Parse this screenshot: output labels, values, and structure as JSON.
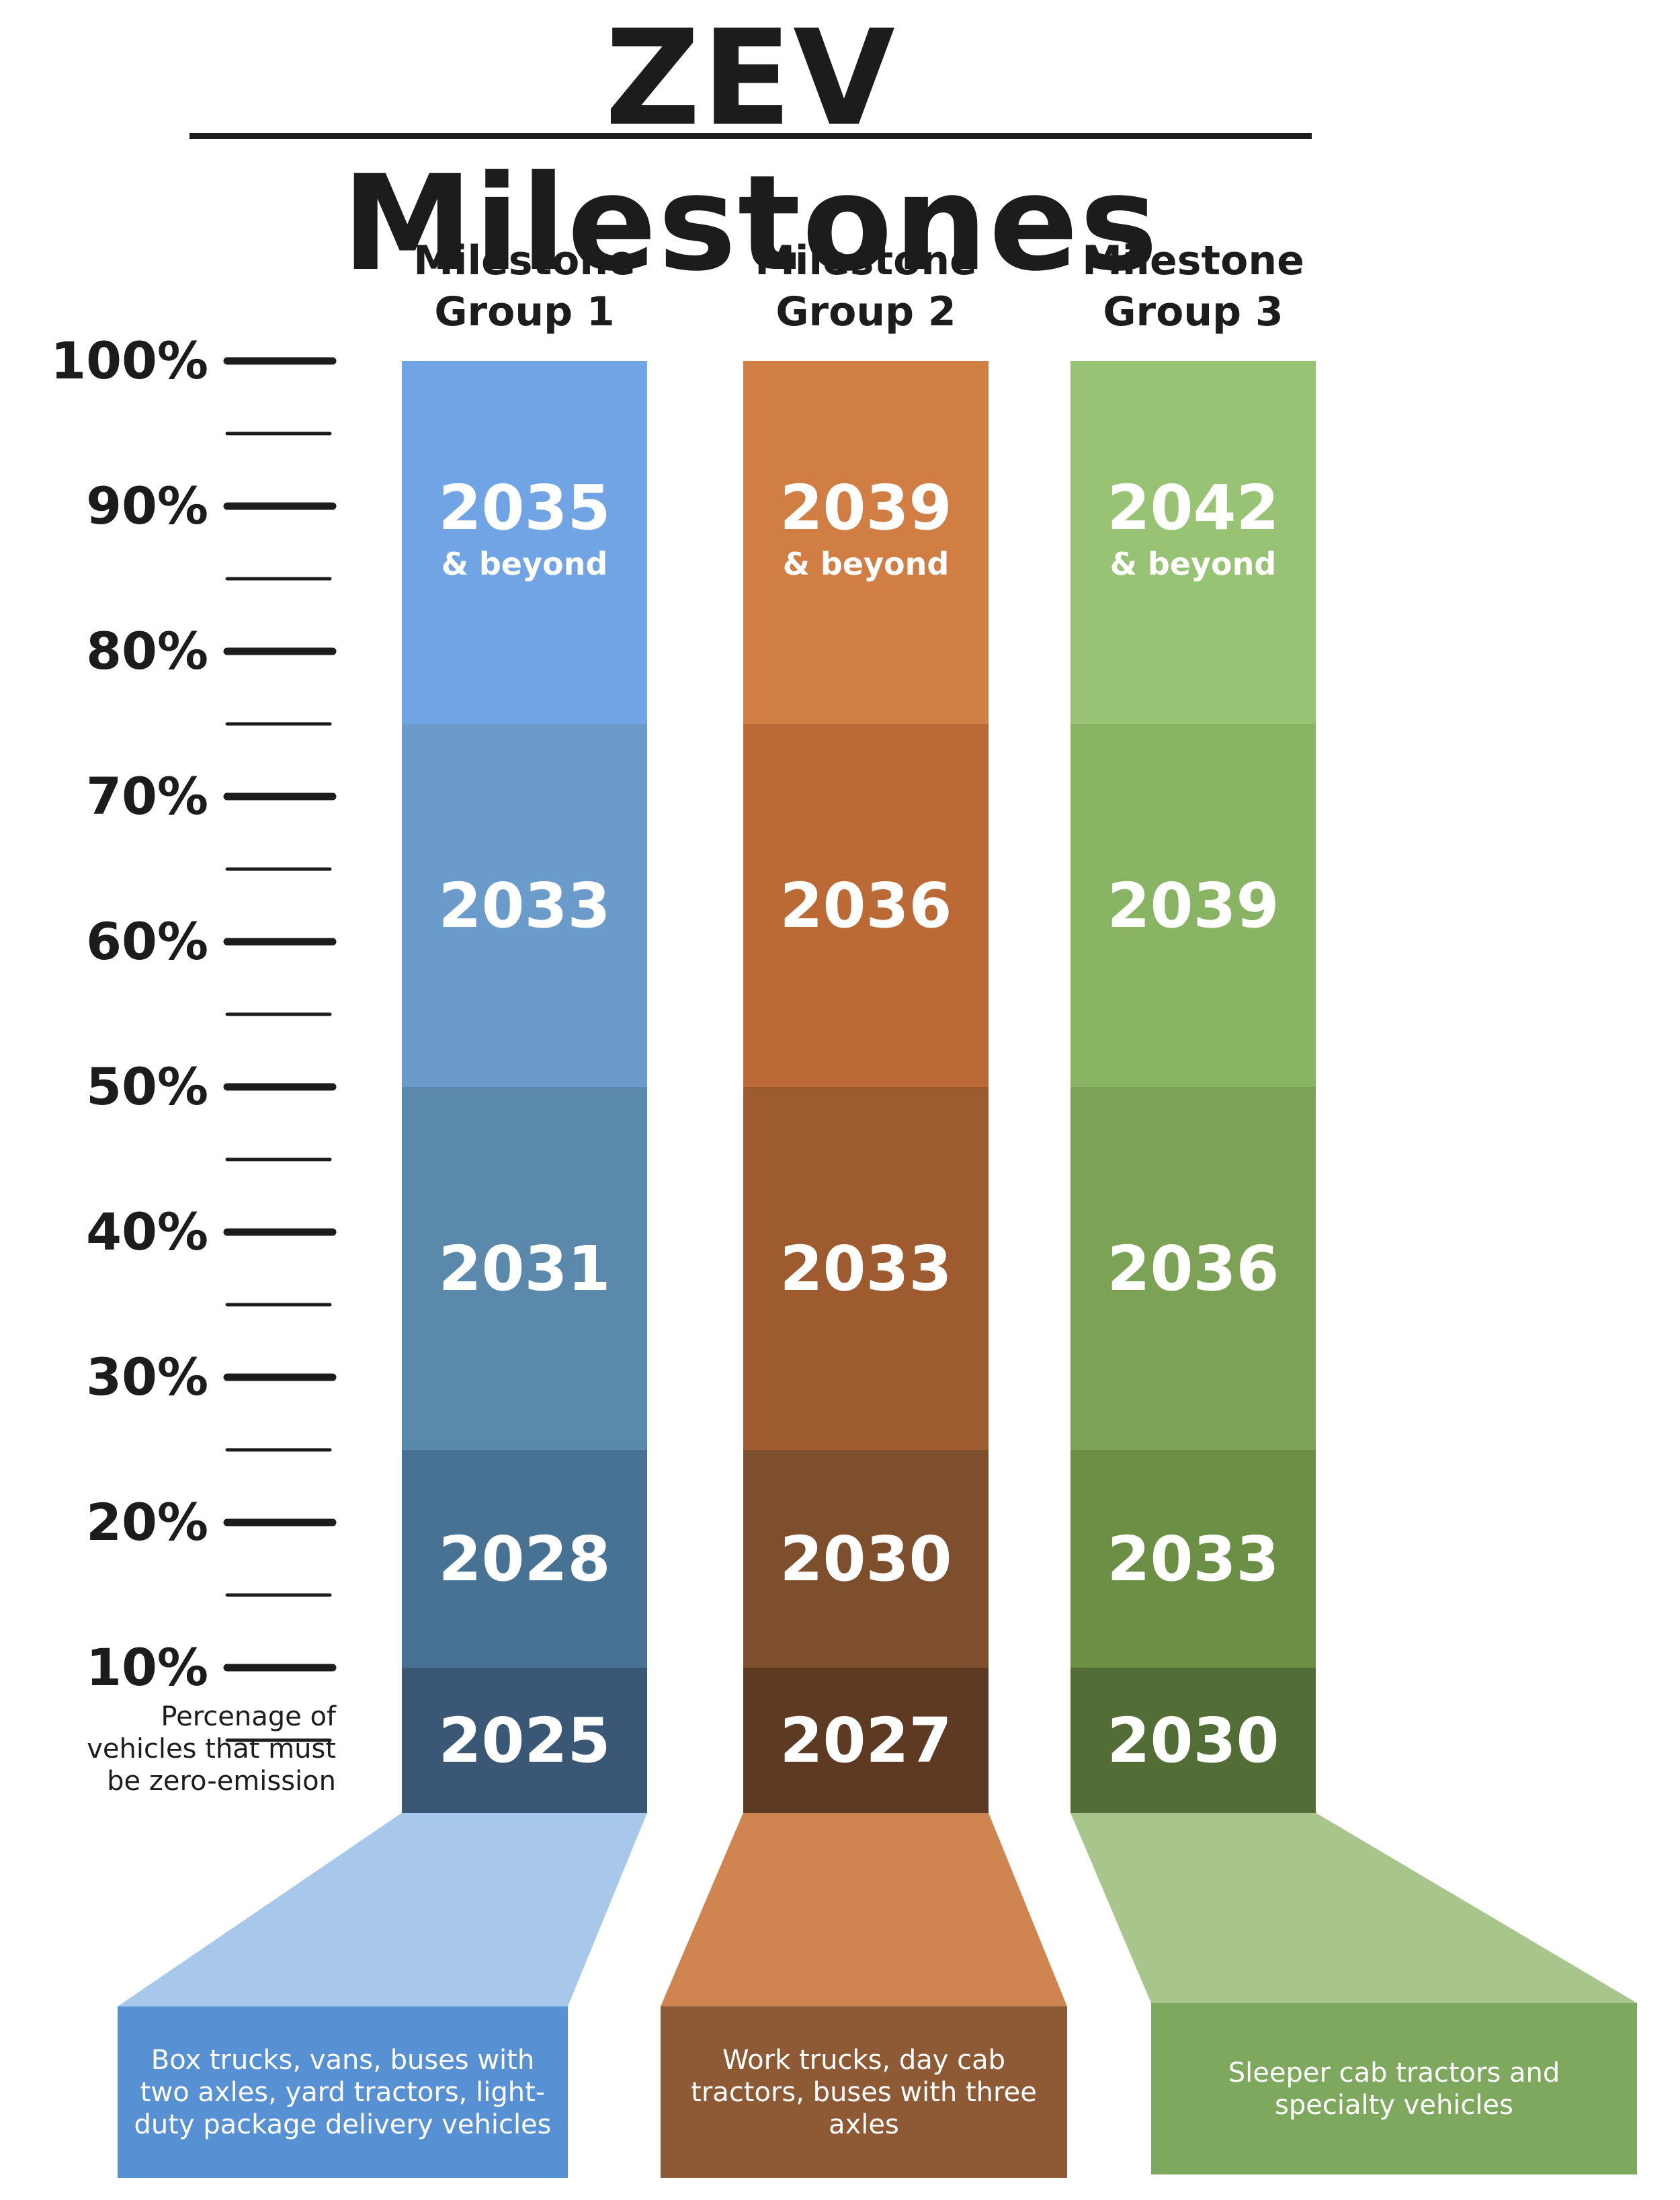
{
  "title": "ZEV Milestones",
  "chart_data": {
    "type": "bar",
    "ylabel": "Percenage of vehicles that must be zero-emission",
    "ylim": [
      0,
      100
    ],
    "y_ticks": [
      "10%",
      "20%",
      "30%",
      "40%",
      "50%",
      "60%",
      "70%",
      "80%",
      "90%",
      "100%"
    ],
    "groups": [
      {
        "name": "Milestone Group 1",
        "description": "Box trucks, vans, buses with two axles, yard tractors, light-duty package delivery vehicles",
        "colors": {
          "segments": [
            "#3a5876",
            "#477294",
            "#5b89ac",
            "#6b9bca",
            "#71a4e4"
          ],
          "funnel": "#a8c8eb",
          "box": "#5790d3"
        },
        "segments": [
          {
            "from": 0,
            "to": 10,
            "year": "2025"
          },
          {
            "from": 10,
            "to": 25,
            "year": "2028"
          },
          {
            "from": 25,
            "to": 50,
            "year": "2031"
          },
          {
            "from": 50,
            "to": 75,
            "year": "2033"
          },
          {
            "from": 75,
            "to": 100,
            "year": "2035",
            "note": "& beyond"
          }
        ]
      },
      {
        "name": "Milestone Group 2",
        "description": "Work trucks, day cab tractors, buses with three axles",
        "colors": {
          "segments": [
            "#5e3a23",
            "#7e4f2c",
            "#9d5b2f",
            "#bb6a36",
            "#d17e45"
          ],
          "funnel": "#d08450",
          "box": "#8e5a35"
        },
        "segments": [
          {
            "from": 0,
            "to": 10,
            "year": "2027"
          },
          {
            "from": 10,
            "to": 25,
            "year": "2030"
          },
          {
            "from": 25,
            "to": 50,
            "year": "2033"
          },
          {
            "from": 50,
            "to": 75,
            "year": "2036"
          },
          {
            "from": 75,
            "to": 100,
            "year": "2039",
            "note": "& beyond"
          }
        ]
      },
      {
        "name": "Milestone Group 3",
        "description": "Sleeper cab tractors and specialty vehicles",
        "colors": {
          "segments": [
            "#536d37",
            "#6a8f45",
            "#7ca256",
            "#89b463",
            "#99c374"
          ],
          "funnel": "#a8c68b",
          "box": "#7ea85e"
        },
        "segments": [
          {
            "from": 0,
            "to": 10,
            "year": "2030"
          },
          {
            "from": 10,
            "to": 25,
            "year": "2033"
          },
          {
            "from": 25,
            "to": 50,
            "year": "2036"
          },
          {
            "from": 50,
            "to": 75,
            "year": "2039"
          },
          {
            "from": 75,
            "to": 100,
            "year": "2042",
            "note": "& beyond"
          }
        ]
      }
    ]
  }
}
